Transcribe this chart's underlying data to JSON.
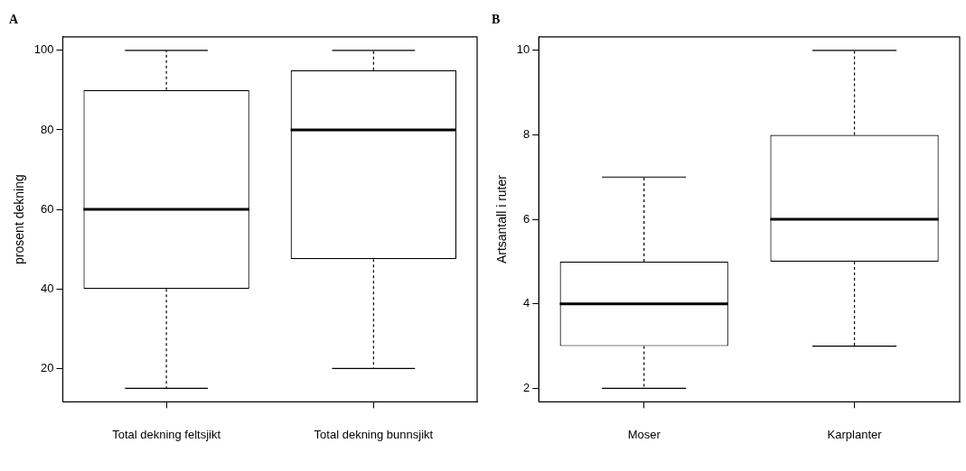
{
  "chart_data": [
    {
      "type": "box",
      "title": "A",
      "ylabel": "prosent dekning",
      "categories": [
        "Total dekning feltsjikt",
        "Total dekning bunnsjikt"
      ],
      "boxes": [
        {
          "low": 15,
          "q1": 40,
          "median": 60,
          "q3": 90,
          "high": 100
        },
        {
          "low": 20,
          "q1": 47.5,
          "median": 80,
          "q3": 95,
          "high": 100
        }
      ],
      "ylim": [
        11.6,
        103.4
      ],
      "yticks": [
        20,
        40,
        60,
        80,
        100
      ],
      "grid": false
    },
    {
      "type": "box",
      "title": "B",
      "ylabel": "Artsantall i ruter",
      "categories": [
        "Moser",
        "Karplanter"
      ],
      "boxes": [
        {
          "low": 2,
          "q1": 3,
          "median": 4,
          "q3": 5,
          "high": 7
        },
        {
          "low": 3,
          "q1": 5,
          "median": 6,
          "q3": 8,
          "high": 10
        }
      ],
      "ylim": [
        1.68,
        10.32
      ],
      "yticks": [
        2,
        4,
        6,
        8,
        10
      ],
      "grid": false
    }
  ]
}
